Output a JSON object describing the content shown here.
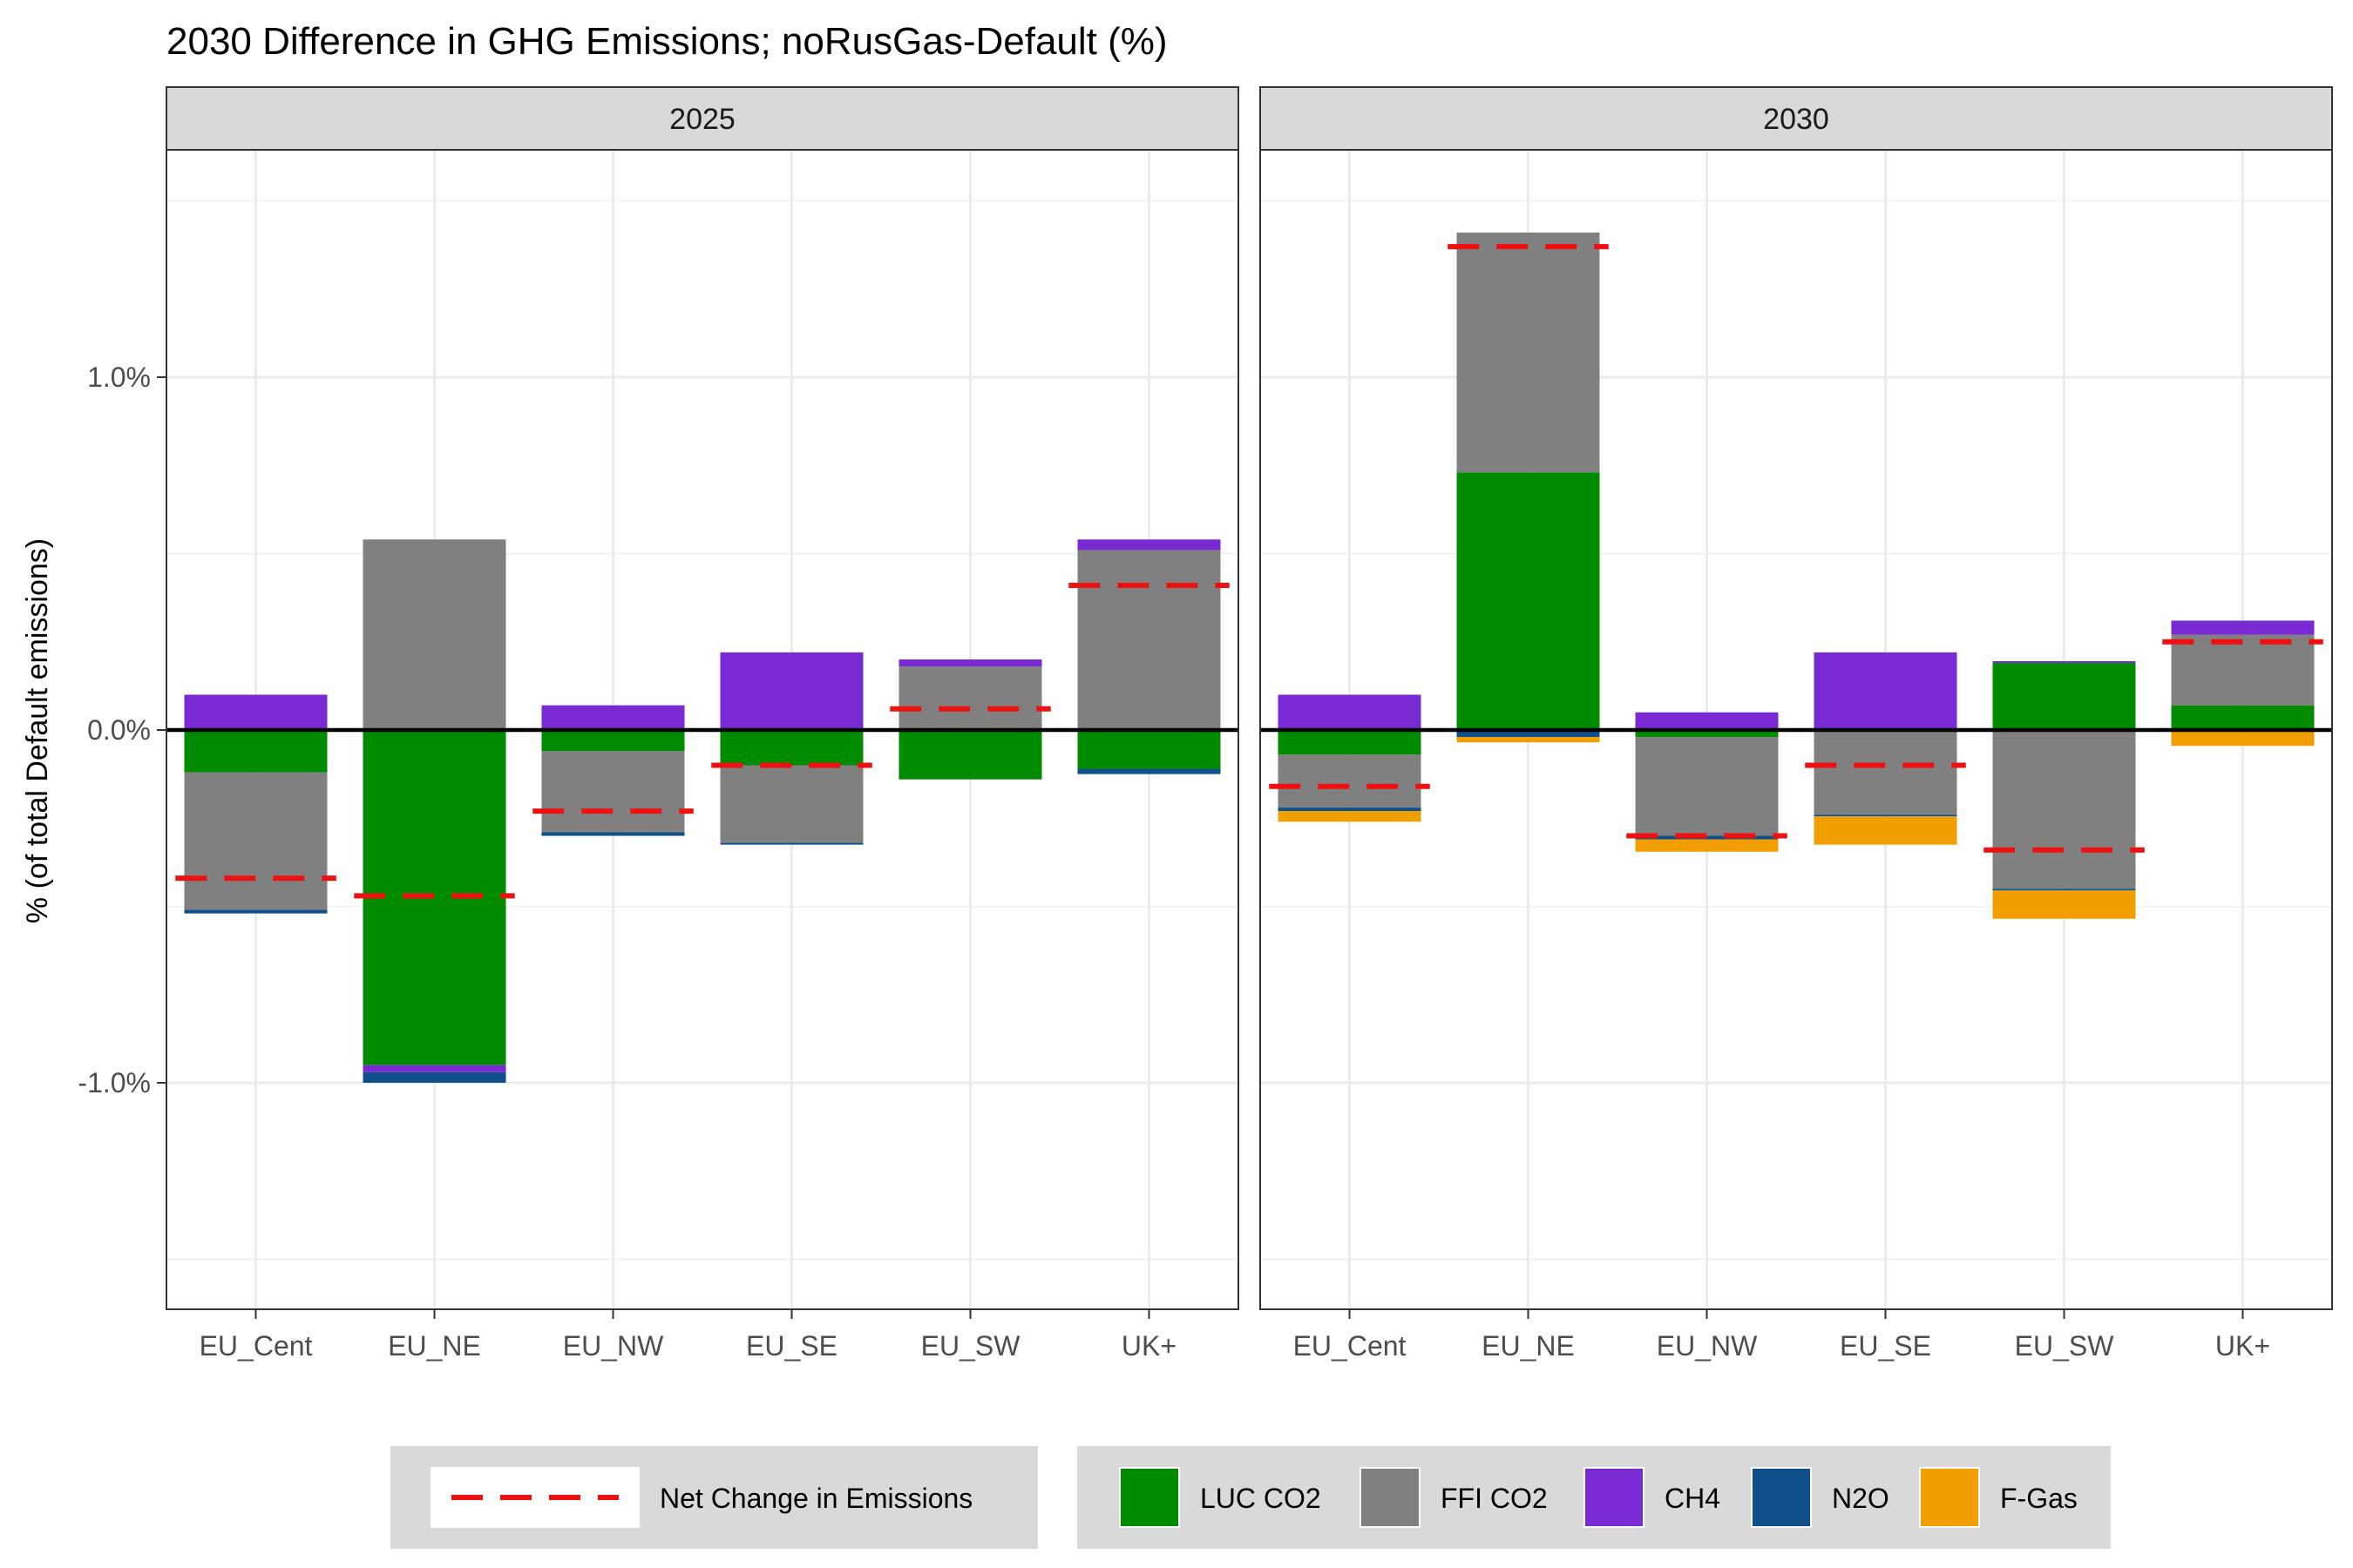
{
  "chart_data": {
    "type": "bar",
    "title": "2030 Difference in GHG Emissions; noRusGas-Default (%)",
    "ylabel": "% (of total Default emissions)",
    "xlabel": "",
    "ylim": [
      -1.65,
      1.65
    ],
    "y_ticks": [
      -1.0,
      0.0,
      1.0
    ],
    "y_tick_labels": [
      "-1.0%",
      "0.0%",
      "1.0%"
    ],
    "grid": true,
    "categories": [
      "EU_Cent",
      "EU_NE",
      "EU_NW",
      "EU_SE",
      "EU_SW",
      "UK+"
    ],
    "colors": {
      "LUC CO2": "#008b00",
      "FFI CO2": "#808080",
      "CH4": "#7a2ad2",
      "N2O": "#0f4f8a",
      "F-Gas": "#f19e00",
      "net": "#ee1111"
    },
    "legend": {
      "position": "bottom",
      "line_label": "Net Change in Emissions",
      "fill_labels": [
        "LUC CO2",
        "FFI CO2",
        "CH4",
        "N2O",
        "F-Gas"
      ]
    },
    "facets": [
      {
        "label": "2025",
        "series": [
          {
            "name": "LUC CO2",
            "values": [
              -0.12,
              -0.95,
              -0.06,
              -0.1,
              -0.14,
              -0.11
            ]
          },
          {
            "name": "FFI CO2",
            "values": [
              -0.39,
              0.54,
              -0.23,
              -0.22,
              0.18,
              0.51
            ]
          },
          {
            "name": "CH4",
            "values": [
              0.1,
              -0.02,
              0.07,
              0.22,
              0.02,
              0.03
            ]
          },
          {
            "name": "N2O",
            "values": [
              -0.01,
              -0.03,
              -0.01,
              -0.005,
              0.0,
              -0.015
            ]
          },
          {
            "name": "F-Gas",
            "values": [
              0.0,
              0.0,
              0.0,
              0.0,
              0.0,
              0.0
            ]
          }
        ],
        "net": [
          -0.42,
          -0.47,
          -0.23,
          -0.1,
          0.06,
          0.41
        ]
      },
      {
        "label": "2030",
        "series": [
          {
            "name": "LUC CO2",
            "values": [
              -0.07,
              0.73,
              -0.02,
              0.0,
              0.19,
              0.07
            ]
          },
          {
            "name": "FFI CO2",
            "values": [
              -0.15,
              0.68,
              -0.28,
              -0.24,
              -0.45,
              0.2
            ]
          },
          {
            "name": "CH4",
            "values": [
              0.1,
              0.0,
              0.05,
              0.22,
              0.005,
              0.04
            ]
          },
          {
            "name": "N2O",
            "values": [
              -0.01,
              -0.02,
              -0.01,
              -0.005,
              -0.005,
              -0.005
            ]
          },
          {
            "name": "F-Gas",
            "values": [
              -0.03,
              -0.015,
              -0.035,
              -0.08,
              -0.08,
              -0.04
            ]
          }
        ],
        "net": [
          -0.16,
          1.37,
          -0.3,
          -0.1,
          -0.34,
          0.25
        ]
      }
    ]
  }
}
